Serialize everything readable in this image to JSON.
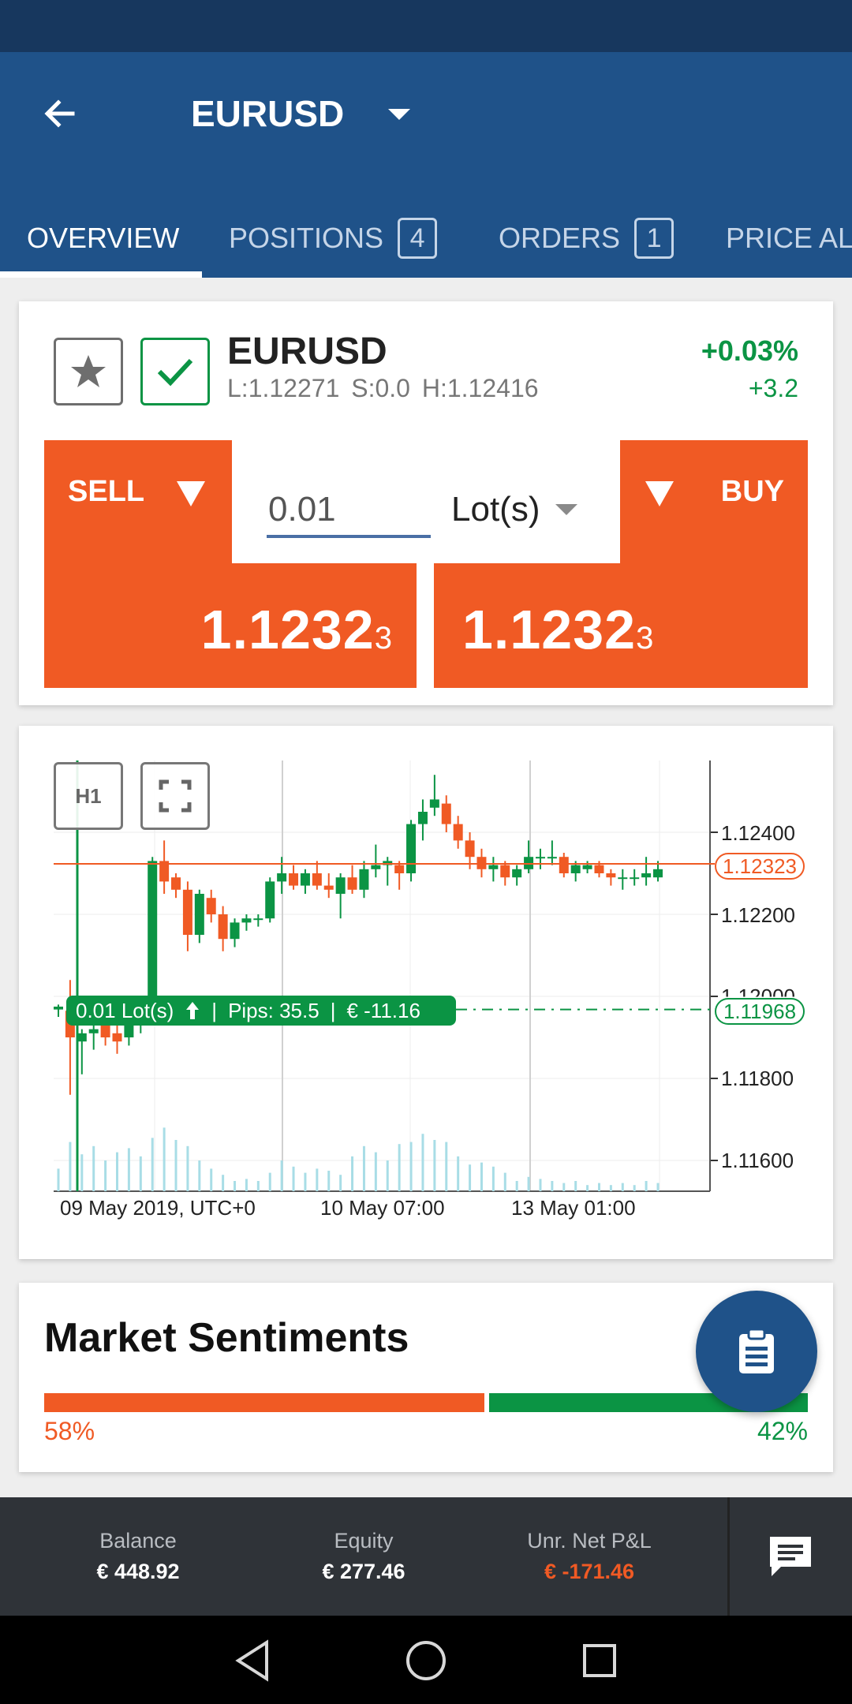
{
  "header": {
    "title": "EURUSD",
    "back_icon": "arrow-left-icon",
    "dropdown_icon": "caret-down-icon"
  },
  "tabs": [
    {
      "label": "OVERVIEW",
      "count": ""
    },
    {
      "label": "POSITIONS",
      "count": "4"
    },
    {
      "label": "ORDERS",
      "count": "1"
    },
    {
      "label": "PRICE AL",
      "count": ""
    }
  ],
  "instrument": {
    "symbol": "EURUSD",
    "stats": "L:1.12271   S:0.0   H:1.12416",
    "change_pct": "+0.03%",
    "change_abs": "+3.2"
  },
  "trade": {
    "sell_label": "SELL",
    "buy_label": "BUY",
    "sell_price_main": "1.1232",
    "sell_price_small": "3",
    "buy_price_main": "1.1232",
    "buy_price_small": "3",
    "quantity": "0.01",
    "unit": "Lot(s)"
  },
  "chart_toolbar": {
    "timeframe": "H1",
    "fullscreen_icon": "fullscreen-icon"
  },
  "position_pill": {
    "lots": "0.01 Lot(s)",
    "pips": "Pips: 35.5",
    "pnl": "€ -11.16"
  },
  "chart_data": {
    "type": "candlestick",
    "title": "",
    "xlabel": "",
    "ylabel": "",
    "ylim": [
      1.1155,
      1.125
    ],
    "y_ticks": [
      "1.12400",
      "1.12200",
      "1.12000",
      "1.11800",
      "1.11600"
    ],
    "x_ticks": [
      "09 May 2019, UTC+0",
      "10 May 07:00",
      "13 May 01:00"
    ],
    "current_price": "1.12323",
    "entry_price": "1.11968",
    "colors": {
      "up": "#0b9444",
      "down": "#f05a24",
      "volume": "#a8dde6"
    },
    "candles": [
      [
        1.11968,
        1.1198,
        1.1195,
        1.11975
      ],
      [
        1.11965,
        1.1204,
        1.1176,
        1.119
      ],
      [
        1.1189,
        1.1192,
        1.1181,
        1.1191
      ],
      [
        1.1191,
        1.1194,
        1.1187,
        1.1192
      ],
      [
        1.1193,
        1.1195,
        1.1188,
        1.119
      ],
      [
        1.1191,
        1.1193,
        1.1186,
        1.1189
      ],
      [
        1.119,
        1.1195,
        1.1188,
        1.1193
      ],
      [
        1.1193,
        1.1196,
        1.1191,
        1.1195
      ],
      [
        1.1195,
        1.1234,
        1.1193,
        1.1233
      ],
      [
        1.1233,
        1.1238,
        1.1225,
        1.1228
      ],
      [
        1.1229,
        1.123,
        1.1224,
        1.1226
      ],
      [
        1.1226,
        1.1228,
        1.1211,
        1.1215
      ],
      [
        1.1215,
        1.1226,
        1.1213,
        1.1225
      ],
      [
        1.1224,
        1.1226,
        1.1218,
        1.122
      ],
      [
        1.122,
        1.1222,
        1.1211,
        1.1214
      ],
      [
        1.1214,
        1.1219,
        1.1212,
        1.1218
      ],
      [
        1.1218,
        1.122,
        1.1216,
        1.1219
      ],
      [
        1.1219,
        1.122,
        1.1217,
        1.1219
      ],
      [
        1.1219,
        1.1229,
        1.1218,
        1.1228
      ],
      [
        1.1228,
        1.1234,
        1.1225,
        1.123
      ],
      [
        1.123,
        1.1232,
        1.1226,
        1.1227
      ],
      [
        1.1227,
        1.1231,
        1.1225,
        1.123
      ],
      [
        1.123,
        1.1233,
        1.1226,
        1.1227
      ],
      [
        1.1227,
        1.123,
        1.1224,
        1.1226
      ],
      [
        1.1225,
        1.123,
        1.1219,
        1.1229
      ],
      [
        1.1229,
        1.1232,
        1.1225,
        1.1226
      ],
      [
        1.1226,
        1.1233,
        1.1224,
        1.1231
      ],
      [
        1.1231,
        1.1237,
        1.1229,
        1.1232
      ],
      [
        1.1232,
        1.1234,
        1.1227,
        1.1233
      ],
      [
        1.1232,
        1.1233,
        1.1226,
        1.123
      ],
      [
        1.123,
        1.1243,
        1.1228,
        1.1242
      ],
      [
        1.1242,
        1.1248,
        1.1238,
        1.1245
      ],
      [
        1.1246,
        1.1254,
        1.1244,
        1.1248
      ],
      [
        1.1247,
        1.1249,
        1.124,
        1.1242
      ],
      [
        1.1242,
        1.1244,
        1.1236,
        1.1238
      ],
      [
        1.1238,
        1.124,
        1.1231,
        1.1234
      ],
      [
        1.1234,
        1.1236,
        1.1229,
        1.1231
      ],
      [
        1.1231,
        1.1234,
        1.1228,
        1.1232
      ],
      [
        1.1232,
        1.1233,
        1.1227,
        1.1229
      ],
      [
        1.1229,
        1.1232,
        1.1227,
        1.1231
      ],
      [
        1.1231,
        1.1238,
        1.123,
        1.1234
      ],
      [
        1.1234,
        1.1236,
        1.1231,
        1.1234
      ],
      [
        1.1234,
        1.1238,
        1.1232,
        1.1234
      ],
      [
        1.1234,
        1.1235,
        1.1229,
        1.123
      ],
      [
        1.123,
        1.1233,
        1.1228,
        1.1232
      ],
      [
        1.1231,
        1.1233,
        1.123,
        1.1232
      ],
      [
        1.1232,
        1.1233,
        1.1229,
        1.123
      ],
      [
        1.123,
        1.1231,
        1.1227,
        1.1229
      ],
      [
        1.1229,
        1.1231,
        1.1226,
        1.1229
      ],
      [
        1.1229,
        1.1231,
        1.1227,
        1.1229
      ],
      [
        1.1229,
        1.1234,
        1.1227,
        1.123
      ],
      [
        1.1229,
        1.1233,
        1.1228,
        1.1231
      ]
    ],
    "volume": [
      0.22,
      0.48,
      0.36,
      0.44,
      0.3,
      0.38,
      0.42,
      0.34,
      0.52,
      0.62,
      0.5,
      0.44,
      0.3,
      0.22,
      0.16,
      0.1,
      0.12,
      0.1,
      0.18,
      0.3,
      0.24,
      0.18,
      0.22,
      0.2,
      0.16,
      0.34,
      0.44,
      0.38,
      0.3,
      0.46,
      0.48,
      0.56,
      0.5,
      0.48,
      0.34,
      0.26,
      0.28,
      0.24,
      0.18,
      0.1,
      0.14,
      0.12,
      0.1,
      0.08,
      0.1,
      0.06,
      0.08,
      0.06,
      0.08,
      0.06,
      0.1,
      0.08
    ]
  },
  "sentiment": {
    "title": "Market Sentiments",
    "sell_pct": "58%",
    "buy_pct": "42%",
    "sell_fraction": 0.58
  },
  "footer": {
    "balance_label": "Balance",
    "balance_value": "€ 448.92",
    "equity_label": "Equity",
    "equity_value": "€ 277.46",
    "pnl_label": "Unr. Net P&L",
    "pnl_value": "€ -171.46",
    "chat_icon": "chat-icon"
  },
  "fab_icon": "clipboard-icon",
  "nav": {
    "back_icon": "nav-back-icon",
    "home_icon": "nav-home-icon",
    "recents_icon": "nav-recents-icon"
  }
}
